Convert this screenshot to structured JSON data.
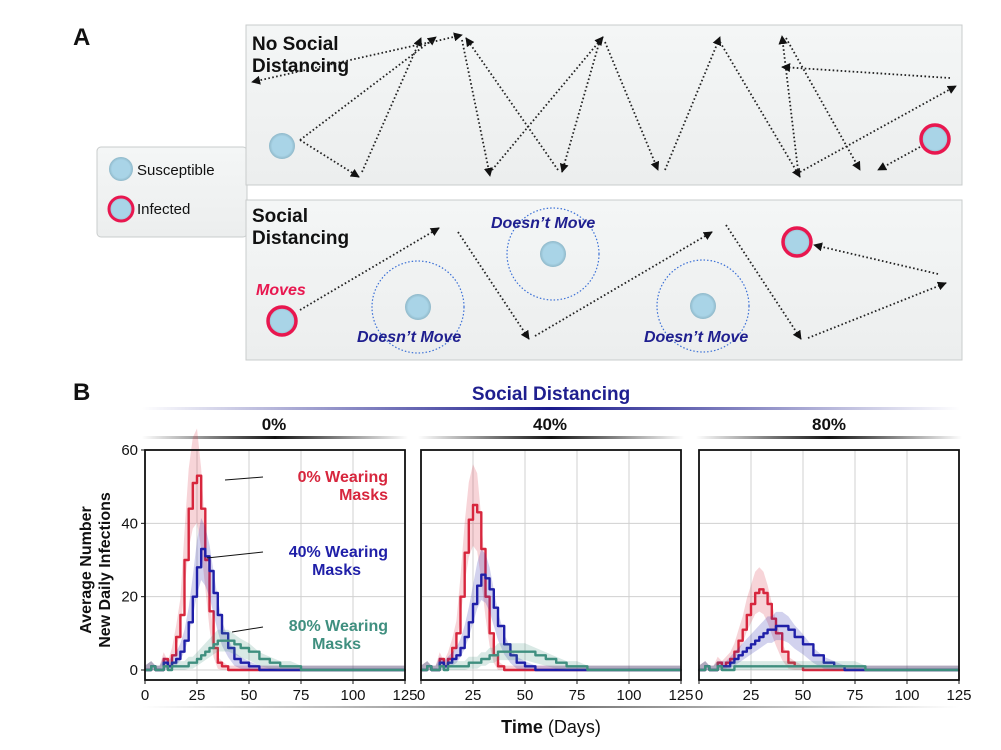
{
  "panel_a": {
    "letter": "A",
    "legend": {
      "susceptible": "Susceptible",
      "infected": "Infected"
    },
    "top_box": {
      "title_line1": "No Social",
      "title_line2": "Distancing"
    },
    "bottom_box": {
      "title_line1": "Social",
      "title_line2": "Distancing",
      "moves_label": "Moves",
      "stationary_label": "Doesn’t Move"
    }
  },
  "panel_b": {
    "letter": "B",
    "header": "Social Distancing",
    "facets": [
      "0%",
      "40%",
      "80%"
    ],
    "ylabel_line1": "Average Number",
    "ylabel_line2": "New Daily Infections",
    "xlabel_bold": "Time",
    "xlabel_rest": " (Days)",
    "annotations": [
      {
        "line1": "0% Wearing",
        "line2": "Masks",
        "color": "#d7263d"
      },
      {
        "line1": "40% Wearing",
        "line2": "Masks",
        "color": "#1f1fa8"
      },
      {
        "line1": "80% Wearing",
        "line2": "Masks",
        "color": "#3f8f7f"
      }
    ]
  },
  "colors": {
    "mask0": "#d7263d",
    "mask40": "#1f1fa8",
    "mask80": "#3f8f7f",
    "infected_ring": "#e8174f",
    "susceptible_fill": "#a8d3e6",
    "title_blue": "#1f1f8f"
  },
  "chart_data": [
    {
      "type": "line",
      "facet": "0% Social Distancing",
      "xlabel": "Time (Days)",
      "ylabel": "Average Number New Daily Infections",
      "xlim": [
        0,
        125
      ],
      "ylim": [
        0,
        60
      ],
      "xticks": [
        0,
        25,
        50,
        75,
        100,
        125
      ],
      "yticks": [
        0,
        20,
        40,
        60
      ],
      "grid": true,
      "x": [
        0,
        3,
        5,
        7,
        9,
        11,
        13,
        15,
        17,
        19,
        21,
        23,
        25,
        27,
        29,
        31,
        33,
        35,
        37,
        40,
        43,
        46,
        50,
        55,
        60,
        65,
        70,
        75,
        80,
        90,
        100,
        110,
        125
      ],
      "series": [
        {
          "name": "0% Wearing Masks",
          "values": [
            0,
            1,
            0,
            0,
            3,
            1,
            4,
            9,
            15,
            30,
            44,
            51,
            53,
            44,
            30,
            16,
            6,
            2,
            1,
            0,
            0,
            0,
            0,
            0,
            0,
            0,
            0,
            0,
            0,
            0,
            0,
            0,
            0
          ]
        },
        {
          "name": "40% Wearing Masks",
          "values": [
            0,
            1,
            0,
            0,
            2,
            1,
            2,
            3,
            5,
            8,
            13,
            20,
            28,
            33,
            31,
            27,
            21,
            15,
            10,
            6,
            3,
            2,
            1,
            0,
            0,
            0,
            0,
            0,
            0,
            0,
            0,
            0,
            0
          ]
        },
        {
          "name": "80% Wearing Masks",
          "values": [
            0,
            1,
            0,
            0,
            1,
            0,
            1,
            1,
            1,
            1,
            2,
            2,
            3,
            4,
            5,
            6,
            7,
            8,
            8,
            8,
            7,
            6,
            5,
            3,
            2,
            1,
            1,
            0,
            0,
            0,
            0,
            0,
            0
          ]
        }
      ]
    },
    {
      "type": "line",
      "facet": "40% Social Distancing",
      "xlabel": "Time (Days)",
      "xlim": [
        0,
        125
      ],
      "ylim": [
        0,
        60
      ],
      "xticks": [
        0,
        25,
        50,
        75,
        100,
        125
      ],
      "grid": true,
      "x": [
        0,
        3,
        5,
        7,
        9,
        11,
        13,
        15,
        17,
        19,
        21,
        23,
        25,
        27,
        29,
        31,
        33,
        35,
        37,
        40,
        43,
        46,
        50,
        55,
        60,
        65,
        70,
        75,
        80,
        90,
        100,
        110,
        125
      ],
      "series": [
        {
          "name": "0% Wearing Masks",
          "values": [
            0,
            1,
            0,
            0,
            3,
            1,
            3,
            6,
            10,
            20,
            32,
            41,
            45,
            43,
            33,
            20,
            10,
            4,
            1,
            0,
            0,
            0,
            0,
            0,
            0,
            0,
            0,
            0,
            0,
            0,
            0,
            0,
            0
          ]
        },
        {
          "name": "40% Wearing Masks",
          "values": [
            0,
            1,
            0,
            0,
            2,
            1,
            2,
            3,
            4,
            6,
            9,
            13,
            18,
            23,
            26,
            25,
            22,
            17,
            12,
            7,
            4,
            2,
            1,
            0,
            0,
            0,
            0,
            0,
            0,
            0,
            0,
            0,
            0
          ]
        },
        {
          "name": "80% Wearing Masks",
          "values": [
            0,
            1,
            0,
            0,
            1,
            0,
            1,
            1,
            1,
            1,
            1,
            2,
            2,
            2,
            3,
            3,
            4,
            4,
            5,
            5,
            5,
            5,
            5,
            4,
            3,
            2,
            1,
            1,
            0,
            0,
            0,
            0,
            0
          ]
        }
      ]
    },
    {
      "type": "line",
      "facet": "80% Social Distancing",
      "xlabel": "Time (Days)",
      "xlim": [
        0,
        125
      ],
      "ylim": [
        0,
        60
      ],
      "xticks": [
        0,
        25,
        50,
        75,
        100,
        125
      ],
      "grid": true,
      "x": [
        0,
        3,
        5,
        7,
        9,
        11,
        13,
        15,
        17,
        19,
        21,
        23,
        25,
        27,
        29,
        31,
        33,
        35,
        37,
        40,
        43,
        46,
        50,
        55,
        60,
        65,
        70,
        75,
        80,
        90,
        100,
        110,
        125
      ],
      "series": [
        {
          "name": "0% Wearing Masks",
          "values": [
            0,
            1,
            0,
            0,
            2,
            1,
            2,
            3,
            5,
            8,
            11,
            15,
            18,
            21,
            22,
            21,
            18,
            14,
            10,
            5,
            2,
            1,
            0,
            0,
            0,
            0,
            0,
            0,
            0,
            0,
            0,
            0,
            0
          ]
        },
        {
          "name": "40% Wearing Masks",
          "values": [
            0,
            1,
            0,
            0,
            1,
            1,
            1,
            2,
            3,
            4,
            5,
            6,
            7,
            8,
            9,
            10,
            11,
            11,
            12,
            12,
            11,
            9,
            7,
            4,
            2,
            1,
            0,
            0,
            0,
            0,
            0,
            0,
            0
          ]
        },
        {
          "name": "80% Wearing Masks",
          "values": [
            0,
            1,
            0,
            0,
            1,
            0,
            0,
            0,
            1,
            1,
            1,
            1,
            1,
            1,
            1,
            1,
            1,
            1,
            1,
            1,
            1,
            1,
            1,
            1,
            1,
            1,
            1,
            1,
            0,
            0,
            0,
            0,
            0
          ]
        }
      ]
    }
  ]
}
